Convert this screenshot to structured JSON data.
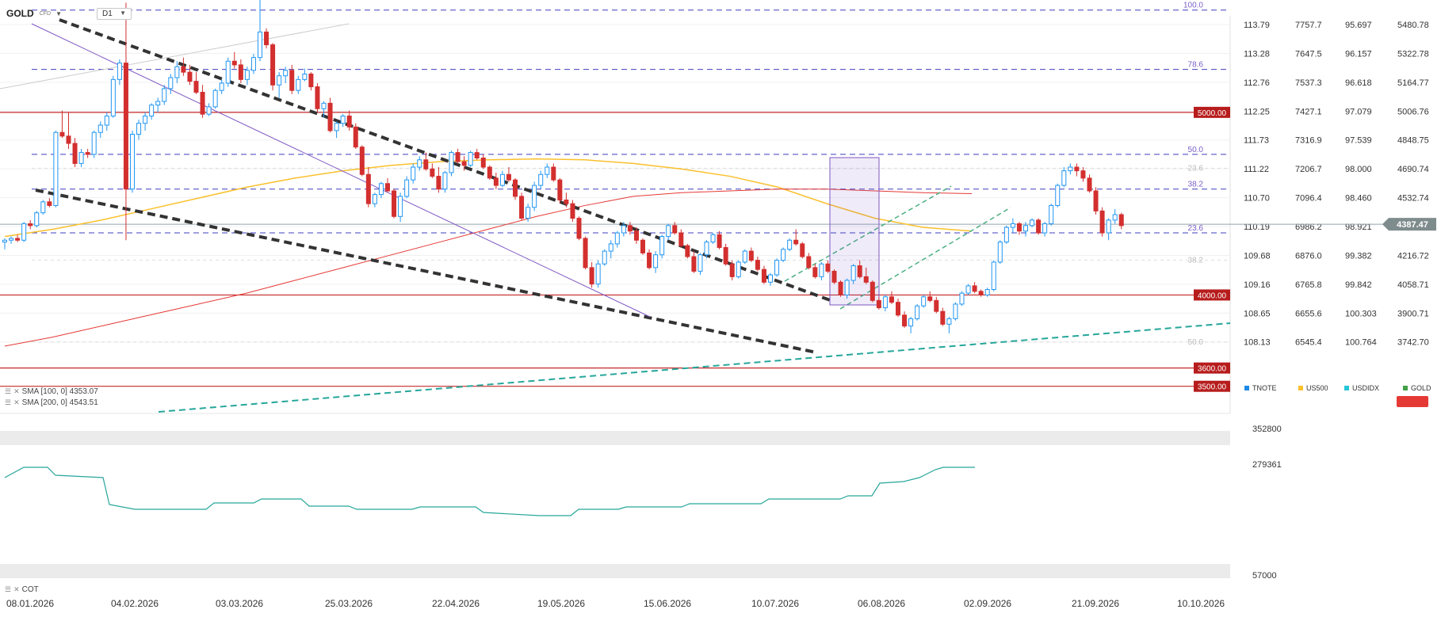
{
  "header": {
    "symbol": "GOLD",
    "symbol_type": "CFD",
    "timeframe": "D1"
  },
  "colors": {
    "up_candle": "#2196f3",
    "down_candle": "#d32f2f",
    "bg": "#ffffff",
    "sma100": "#fbc02d",
    "sma200": "#e53935",
    "fib_line": "#3f3fbf",
    "level_line": "#c62828",
    "channel": "#4caf82",
    "cot_line": "#26a69a",
    "price_badge": "#7f8c8d",
    "level_badge": "#b71c1c"
  },
  "indicators": {
    "sma100_label": "SMA [100, 0] 4353.07",
    "sma200_label": "SMA [200, 0] 4543.51",
    "cot_label": "COT"
  },
  "current_price": "4387.47",
  "level_badges": [
    "5000.00",
    "4000.00",
    "3600.00",
    "3500.00"
  ],
  "chart_data": {
    "type": "candlestick",
    "instrument": "GOLD",
    "timeframe": "D1",
    "x_tick_labels": [
      "08.01.2026",
      "04.02.2026",
      "03.03.2026",
      "25.03.2026",
      "22.04.2026",
      "19.05.2026",
      "15.06.2026",
      "10.07.2026",
      "06.08.2026",
      "02.09.2026",
      "21.09.2026",
      "10.10.2026"
    ],
    "fib_levels": [
      {
        "label": "100.0",
        "value": 5560
      },
      {
        "label": "78.6",
        "value": 5235
      },
      {
        "label": "50.0",
        "value": 4770
      },
      {
        "label": "38.2",
        "value": 4580
      },
      {
        "label": "23.6",
        "value": 4340
      }
    ],
    "fib_levels_faint": [
      "23.6",
      "38.2",
      "50.0"
    ],
    "horizontal_levels": [
      5000,
      4000,
      3600,
      3500
    ],
    "current_price": 4387.47,
    "price_scale": {
      "GOLD": [
        "5480.78",
        "5322.78",
        "5164.77",
        "5006.76",
        "4848.75",
        "4690.74",
        "4532.74",
        "4374.73",
        "4216.72",
        "4058.71",
        "3900.71",
        "3742.70"
      ],
      "TNOTE": [
        "113.79",
        "113.28",
        "112.76",
        "112.25",
        "111.73",
        "111.22",
        "110.70",
        "110.19",
        "109.68",
        "109.16",
        "108.65",
        "108.13"
      ],
      "US500": [
        "7757.7",
        "7647.5",
        "7537.3",
        "7427.1",
        "7316.9",
        "7206.7",
        "7096.4",
        "6986.2",
        "6876.0",
        "6765.8",
        "6655.6",
        "6545.4"
      ],
      "USDIDX": [
        "95.697",
        "96.157",
        "96.618",
        "97.079",
        "97.539",
        "98.000",
        "98.460",
        "98.921",
        "99.382",
        "99.842",
        "100.303",
        "100.764"
      ]
    },
    "legend": [
      "TNOTE",
      "US500",
      "USDIDX",
      "GOLD"
    ],
    "cot_scale": [
      "352800",
      "279361",
      "57000"
    ],
    "candles": [
      [
        4290,
        4310,
        4250,
        4300
      ],
      [
        4300,
        4320,
        4280,
        4310
      ],
      [
        4310,
        4330,
        4290,
        4300
      ],
      [
        4300,
        4400,
        4290,
        4390
      ],
      [
        4390,
        4410,
        4360,
        4380
      ],
      [
        4380,
        4460,
        4370,
        4450
      ],
      [
        4450,
        4520,
        4440,
        4510
      ],
      [
        4510,
        4530,
        4480,
        4490
      ],
      [
        4490,
        4900,
        4480,
        4890
      ],
      [
        4890,
        5010,
        4860,
        4870
      ],
      [
        4870,
        5000,
        4800,
        4830
      ],
      [
        4830,
        4860,
        4700,
        4720
      ],
      [
        4720,
        4800,
        4700,
        4780
      ],
      [
        4780,
        4800,
        4750,
        4770
      ],
      [
        4770,
        4900,
        4750,
        4890
      ],
      [
        4890,
        4950,
        4860,
        4930
      ],
      [
        4930,
        5000,
        4900,
        4980
      ],
      [
        4980,
        5200,
        4970,
        5180
      ],
      [
        5180,
        5290,
        5150,
        5270
      ],
      [
        5270,
        5600,
        4300,
        4580
      ],
      [
        4580,
        4900,
        4560,
        4880
      ],
      [
        4880,
        4960,
        4850,
        4940
      ],
      [
        4940,
        5000,
        4900,
        4980
      ],
      [
        4980,
        5050,
        4960,
        5040
      ],
      [
        5040,
        5080,
        5000,
        5060
      ],
      [
        5060,
        5150,
        5040,
        5130
      ],
      [
        5130,
        5210,
        5100,
        5190
      ],
      [
        5190,
        5280,
        5160,
        5250
      ],
      [
        5250,
        5300,
        5200,
        5220
      ],
      [
        5220,
        5260,
        5150,
        5170
      ],
      [
        5170,
        5220,
        5100,
        5110
      ],
      [
        5110,
        5150,
        4970,
        4990
      ],
      [
        4990,
        5050,
        4980,
        5030
      ],
      [
        5030,
        5130,
        5020,
        5120
      ],
      [
        5120,
        5180,
        5100,
        5160
      ],
      [
        5160,
        5300,
        5140,
        5280
      ],
      [
        5280,
        5330,
        5240,
        5260
      ],
      [
        5260,
        5290,
        5160,
        5180
      ],
      [
        5180,
        5250,
        5150,
        5230
      ],
      [
        5230,
        5320,
        5210,
        5300
      ],
      [
        5300,
        5620,
        5280,
        5440
      ],
      [
        5440,
        5460,
        5350,
        5370
      ],
      [
        5370,
        5380,
        5120,
        5150
      ],
      [
        5150,
        5220,
        5080,
        5200
      ],
      [
        5200,
        5250,
        5160,
        5230
      ],
      [
        5230,
        5260,
        5100,
        5120
      ],
      [
        5120,
        5200,
        5100,
        5180
      ],
      [
        5180,
        5240,
        5170,
        5210
      ],
      [
        5210,
        5220,
        5120,
        5140
      ],
      [
        5140,
        5160,
        5000,
        5020
      ],
      [
        5020,
        5060,
        4970,
        5050
      ],
      [
        5050,
        5080,
        4890,
        4900
      ],
      [
        4900,
        4950,
        4860,
        4940
      ],
      [
        4940,
        4990,
        4920,
        4980
      ],
      [
        4980,
        5010,
        4900,
        4920
      ],
      [
        4920,
        4940,
        4800,
        4810
      ],
      [
        4810,
        4820,
        4650,
        4660
      ],
      [
        4660,
        4700,
        4480,
        4500
      ],
      [
        4500,
        4560,
        4480,
        4550
      ],
      [
        4550,
        4620,
        4530,
        4610
      ],
      [
        4610,
        4640,
        4560,
        4570
      ],
      [
        4570,
        4580,
        4420,
        4430
      ],
      [
        4430,
        4560,
        4400,
        4540
      ],
      [
        4540,
        4650,
        4530,
        4630
      ],
      [
        4630,
        4720,
        4610,
        4700
      ],
      [
        4700,
        4760,
        4680,
        4740
      ],
      [
        4740,
        4780,
        4680,
        4690
      ],
      [
        4690,
        4720,
        4640,
        4650
      ],
      [
        4650,
        4700,
        4560,
        4580
      ],
      [
        4580,
        4680,
        4560,
        4670
      ],
      [
        4670,
        4790,
        4650,
        4780
      ],
      [
        4780,
        4800,
        4720,
        4730
      ],
      [
        4730,
        4760,
        4680,
        4710
      ],
      [
        4710,
        4790,
        4700,
        4780
      ],
      [
        4780,
        4800,
        4740,
        4750
      ],
      [
        4750,
        4770,
        4690,
        4700
      ],
      [
        4700,
        4710,
        4630,
        4640
      ],
      [
        4640,
        4670,
        4580,
        4600
      ],
      [
        4600,
        4680,
        4590,
        4660
      ],
      [
        4660,
        4700,
        4620,
        4630
      ],
      [
        4630,
        4640,
        4520,
        4540
      ],
      [
        4540,
        4560,
        4410,
        4420
      ],
      [
        4420,
        4500,
        4400,
        4480
      ],
      [
        4480,
        4620,
        4460,
        4600
      ],
      [
        4600,
        4680,
        4580,
        4660
      ],
      [
        4660,
        4720,
        4640,
        4700
      ],
      [
        4700,
        4720,
        4620,
        4630
      ],
      [
        4630,
        4640,
        4500,
        4520
      ],
      [
        4520,
        4560,
        4480,
        4500
      ],
      [
        4500,
        4520,
        4400,
        4420
      ],
      [
        4420,
        4430,
        4300,
        4310
      ],
      [
        4310,
        4320,
        4140,
        4150
      ],
      [
        4150,
        4180,
        4040,
        4060
      ],
      [
        4060,
        4190,
        4040,
        4170
      ],
      [
        4170,
        4250,
        4160,
        4240
      ],
      [
        4240,
        4300,
        4200,
        4280
      ],
      [
        4280,
        4350,
        4260,
        4340
      ],
      [
        4340,
        4400,
        4320,
        4380
      ],
      [
        4380,
        4400,
        4330,
        4350
      ],
      [
        4350,
        4370,
        4280,
        4300
      ],
      [
        4300,
        4310,
        4220,
        4230
      ],
      [
        4230,
        4250,
        4140,
        4150
      ],
      [
        4150,
        4240,
        4120,
        4220
      ],
      [
        4220,
        4330,
        4200,
        4320
      ],
      [
        4320,
        4390,
        4300,
        4380
      ],
      [
        4380,
        4400,
        4330,
        4340
      ],
      [
        4340,
        4360,
        4260,
        4270
      ],
      [
        4270,
        4280,
        4200,
        4210
      ],
      [
        4210,
        4240,
        4120,
        4130
      ],
      [
        4130,
        4230,
        4110,
        4220
      ],
      [
        4220,
        4300,
        4200,
        4290
      ],
      [
        4290,
        4340,
        4280,
        4330
      ],
      [
        4330,
        4350,
        4250,
        4260
      ],
      [
        4260,
        4280,
        4160,
        4170
      ],
      [
        4170,
        4190,
        4080,
        4100
      ],
      [
        4100,
        4190,
        4090,
        4180
      ],
      [
        4180,
        4250,
        4170,
        4240
      ],
      [
        4240,
        4260,
        4180,
        4190
      ],
      [
        4190,
        4210,
        4130,
        4140
      ],
      [
        4140,
        4160,
        4060,
        4070
      ],
      [
        4070,
        4120,
        4050,
        4110
      ],
      [
        4110,
        4200,
        4100,
        4190
      ],
      [
        4190,
        4260,
        4180,
        4250
      ],
      [
        4250,
        4310,
        4240,
        4300
      ],
      [
        4300,
        4360,
        4270,
        4280
      ],
      [
        4280,
        4290,
        4200,
        4210
      ],
      [
        4210,
        4230,
        4140,
        4150
      ],
      [
        4150,
        4170,
        4090,
        4100
      ],
      [
        4100,
        4180,
        4080,
        4170
      ],
      [
        4170,
        4190,
        4120,
        4130
      ],
      [
        4130,
        4140,
        4060,
        4070
      ],
      [
        4070,
        4080,
        3990,
        4000
      ],
      [
        4000,
        4090,
        3980,
        4080
      ],
      [
        4080,
        4170,
        4060,
        4160
      ],
      [
        4160,
        4190,
        4090,
        4100
      ],
      [
        4100,
        4150,
        4060,
        4070
      ],
      [
        4070,
        4080,
        3960,
        3970
      ],
      [
        3970,
        3990,
        3920,
        3930
      ],
      [
        3930,
        4000,
        3910,
        3990
      ],
      [
        3990,
        4020,
        3950,
        3960
      ],
      [
        3960,
        3980,
        3880,
        3890
      ],
      [
        3890,
        3910,
        3820,
        3830
      ],
      [
        3830,
        3880,
        3790,
        3870
      ],
      [
        3870,
        3950,
        3860,
        3940
      ],
      [
        3940,
        4000,
        3930,
        3990
      ],
      [
        3990,
        4020,
        3960,
        3970
      ],
      [
        3970,
        3990,
        3900,
        3910
      ],
      [
        3910,
        3930,
        3830,
        3840
      ],
      [
        3840,
        3880,
        3790,
        3870
      ],
      [
        3870,
        3960,
        3860,
        3950
      ],
      [
        3950,
        4020,
        3940,
        4010
      ],
      [
        4010,
        4060,
        4000,
        4050
      ],
      [
        4050,
        4070,
        4010,
        4020
      ],
      [
        4020,
        4030,
        3990,
        4000
      ],
      [
        4000,
        4040,
        3990,
        4030
      ],
      [
        4030,
        4190,
        4020,
        4180
      ],
      [
        4180,
        4300,
        4170,
        4290
      ],
      [
        4290,
        4380,
        4280,
        4370
      ],
      [
        4370,
        4420,
        4340,
        4390
      ],
      [
        4390,
        4400,
        4330,
        4350
      ],
      [
        4350,
        4400,
        4320,
        4380
      ],
      [
        4380,
        4420,
        4370,
        4410
      ],
      [
        4410,
        4420,
        4330,
        4340
      ],
      [
        4340,
        4400,
        4320,
        4390
      ],
      [
        4390,
        4500,
        4380,
        4490
      ],
      [
        4490,
        4610,
        4480,
        4600
      ],
      [
        4600,
        4700,
        4590,
        4680
      ],
      [
        4680,
        4720,
        4660,
        4700
      ],
      [
        4700,
        4720,
        4650,
        4680
      ],
      [
        4680,
        4700,
        4620,
        4640
      ],
      [
        4640,
        4660,
        4560,
        4570
      ],
      [
        4570,
        4590,
        4440,
        4460
      ],
      [
        4460,
        4480,
        4320,
        4340
      ],
      [
        4340,
        4420,
        4300,
        4410
      ],
      [
        4410,
        4470,
        4390,
        4440
      ],
      [
        4440,
        4450,
        4360,
        4380
      ]
    ]
  }
}
